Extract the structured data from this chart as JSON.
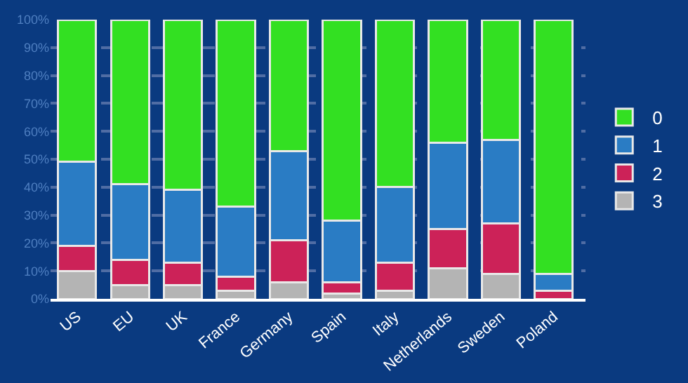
{
  "chart_data": {
    "type": "bar",
    "stacked": true,
    "categories": [
      "US",
      "EU",
      "UK",
      "France",
      "Germany",
      "Spain",
      "Italy",
      "Netherlands",
      "Sweden",
      "Poland"
    ],
    "series": [
      {
        "name": "3",
        "color": "#b4b4b4",
        "values": [
          10,
          5,
          5,
          3,
          6,
          2,
          3,
          11,
          9,
          null
        ]
      },
      {
        "name": "2",
        "color": "#cc2258",
        "values": [
          9,
          9,
          8,
          5,
          15,
          4,
          10,
          14,
          18,
          3
        ]
      },
      {
        "name": "1",
        "color": "#2a7cc4",
        "values": [
          30,
          27,
          26,
          25,
          32,
          22,
          27,
          31,
          30,
          6
        ]
      },
      {
        "name": "0",
        "color": "#33e022",
        "values": [
          51,
          59,
          61,
          67,
          47,
          72,
          60,
          44,
          43,
          91
        ]
      }
    ],
    "ylim": [
      0,
      100
    ],
    "yticks": [
      {
        "value": 0,
        "label": "0%"
      },
      {
        "value": 10,
        "label": "10%"
      },
      {
        "value": 20,
        "label": "20%"
      },
      {
        "value": 30,
        "label": "30%"
      },
      {
        "value": 40,
        "label": "40%"
      },
      {
        "value": 50,
        "label": "50%"
      },
      {
        "value": 60,
        "label": "60%"
      },
      {
        "value": 70,
        "label": "70%"
      },
      {
        "value": 80,
        "label": "80%"
      },
      {
        "value": 90,
        "label": "90%"
      },
      {
        "value": 100,
        "label": "100%"
      }
    ],
    "grid": "y",
    "legend": "right"
  }
}
